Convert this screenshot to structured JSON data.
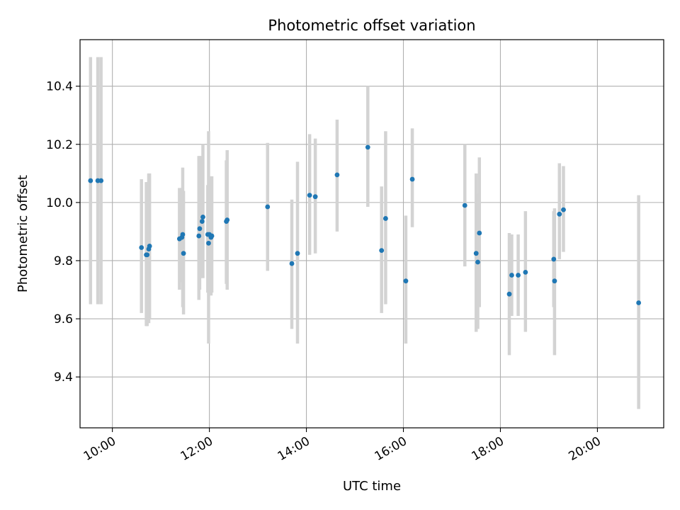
{
  "chart_data": {
    "type": "scatter",
    "title": "Photometric offset variation",
    "xlabel": "UTC time",
    "ylabel": "Photometric offset",
    "x_ticks": [
      "10:00",
      "12:00",
      "14:00",
      "16:00",
      "18:00",
      "20:00"
    ],
    "y_ticks": [
      "9.4",
      "9.6",
      "9.8",
      "10.0",
      "10.2",
      "10.4"
    ],
    "xlim": [
      "09:20",
      "21:22"
    ],
    "ylim": [
      9.225,
      10.56
    ],
    "grid": true,
    "colors": {
      "points": "#1f77b4",
      "errorbars": "#d3d3d3",
      "grid": "#b0b0b0"
    },
    "series": [
      {
        "x": [
          "09:33",
          "09:42",
          "09:46",
          "10:36",
          "10:42",
          "10:43",
          "10:45",
          "10:46",
          "11:23",
          "11:26",
          "11:27",
          "11:28",
          "11:47",
          "11:48",
          "11:51",
          "11:52",
          "11:58",
          "11:59",
          "12:00",
          "12:02",
          "12:03",
          "12:21",
          "12:22",
          "13:12",
          "13:42",
          "13:49",
          "14:04",
          "14:11",
          "14:38",
          "15:16",
          "15:33",
          "15:38",
          "16:03",
          "16:11",
          "17:16",
          "17:30",
          "17:32",
          "17:34",
          "18:11",
          "18:14",
          "18:22",
          "18:31",
          "19:06",
          "19:07",
          "19:13",
          "19:18",
          "20:51"
        ],
        "y": [
          10.075,
          10.075,
          10.075,
          9.845,
          9.82,
          9.82,
          9.84,
          9.85,
          9.875,
          9.88,
          9.89,
          9.825,
          9.885,
          9.91,
          9.935,
          9.95,
          9.89,
          9.86,
          9.89,
          9.88,
          9.885,
          9.935,
          9.94,
          9.985,
          9.79,
          9.825,
          10.025,
          10.02,
          10.095,
          10.19,
          9.835,
          9.945,
          9.73,
          10.08,
          9.99,
          9.825,
          9.795,
          9.895,
          9.685,
          9.75,
          9.75,
          9.76,
          9.805,
          9.73,
          9.96,
          9.975,
          9.655
        ],
        "yerr_low": [
          9.65,
          9.65,
          9.65,
          9.62,
          9.575,
          9.575,
          9.585,
          9.6,
          9.7,
          9.725,
          9.64,
          9.615,
          9.665,
          9.7,
          9.74,
          9.74,
          9.69,
          9.515,
          9.72,
          9.68,
          9.69,
          9.72,
          9.7,
          9.765,
          9.565,
          9.515,
          9.82,
          9.825,
          9.9,
          9.985,
          9.62,
          9.65,
          9.515,
          9.915,
          9.78,
          9.555,
          9.565,
          9.64,
          9.475,
          9.61,
          9.61,
          9.555,
          9.64,
          9.475,
          9.805,
          9.83,
          9.29
        ],
        "yerr_high": [
          10.5,
          10.5,
          10.5,
          10.08,
          10.07,
          10.07,
          10.1,
          10.1,
          10.05,
          10.05,
          10.12,
          10.04,
          10.16,
          10.16,
          10.16,
          10.2,
          10.06,
          10.245,
          10.06,
          10.09,
          10.09,
          10.145,
          10.18,
          10.205,
          10.01,
          10.14,
          10.235,
          10.22,
          10.285,
          10.4,
          10.055,
          10.245,
          9.955,
          10.255,
          10.2,
          10.1,
          10.03,
          10.155,
          9.895,
          9.89,
          9.89,
          9.97,
          9.97,
          9.98,
          10.135,
          10.125,
          10.025
        ]
      }
    ]
  }
}
